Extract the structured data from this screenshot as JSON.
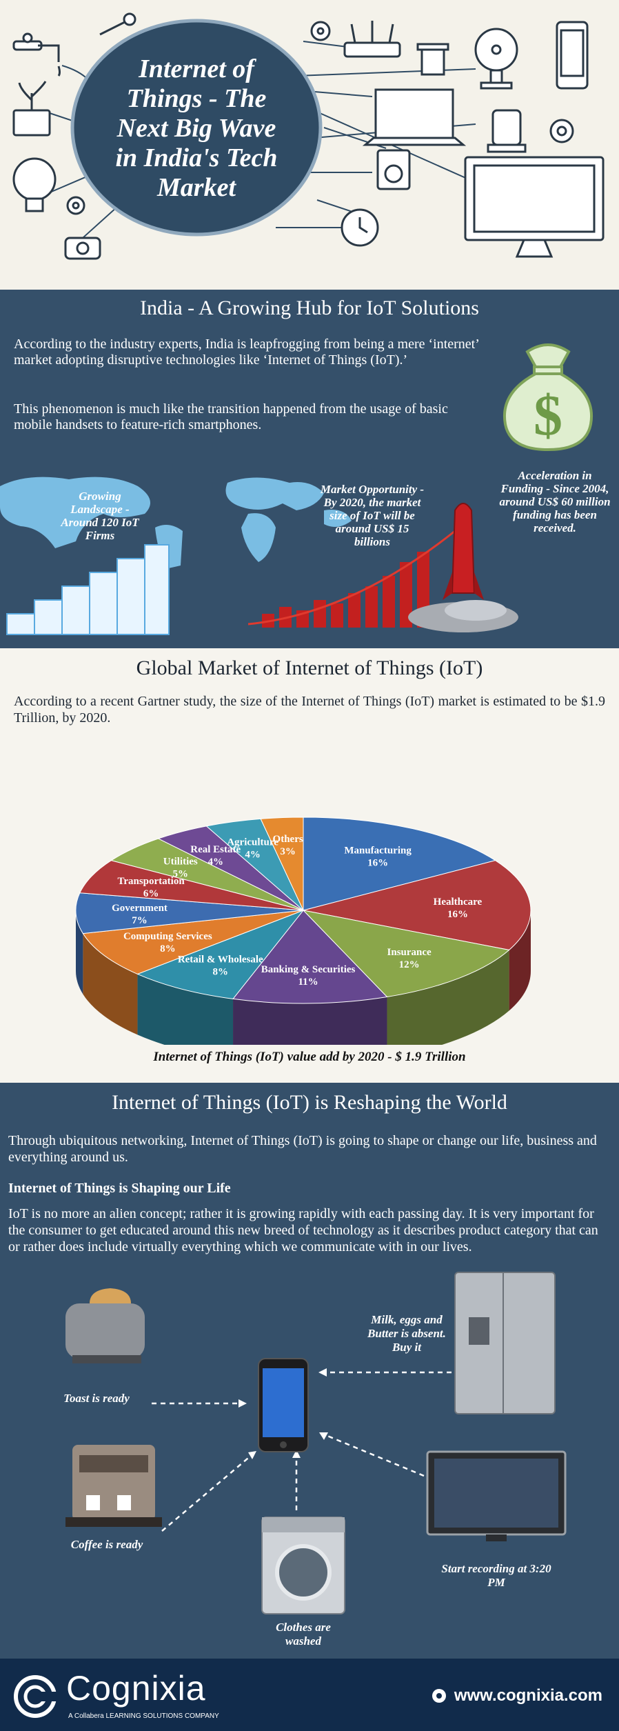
{
  "header": {
    "title_lines": [
      "Internet of",
      "Things - The",
      "Next Big Wave",
      "in India's Tech",
      "Market"
    ]
  },
  "section1": {
    "title": "India - A Growing Hub for IoT Solutions",
    "para1": "According to the industry experts, India is leapfrogging from being a mere ‘internet’ market adopting disruptive technologies like ‘Internet of Things (IoT).’",
    "para2": "This phenomenon is much like the transition happened from the usage of basic mobile handsets to feature-rich smartphones.",
    "label_growing": "Growing Landscape - Around 120 IoT Firms",
    "label_market": "Market Opportunity - By 2020, the market size of IoT will be around US$ 15 billions",
    "label_funding": "Acceleration in Funding - Since 2004, around US$ 60 million funding has been received.",
    "money_symbol": "$"
  },
  "section2": {
    "title": "Global Market of Internet of Things (IoT)",
    "para": "According to a recent Gartner study, the size of the Internet of Things (IoT) market is estimated to be $1.9 Trillion, by 2020.",
    "caption": "Internet of Things (IoT) value add by 2020 - $ 1.9 Trillion"
  },
  "chart_data": {
    "type": "pie",
    "title": "",
    "slices": [
      {
        "label": "Manufacturing",
        "value": 16,
        "color": "#3a6fb4"
      },
      {
        "label": "Healthcare",
        "value": 16,
        "color": "#b03a3c"
      },
      {
        "label": "Insurance",
        "value": 12,
        "color": "#8aa64a"
      },
      {
        "label": "Banking & Securities",
        "value": 11,
        "color": "#65478f"
      },
      {
        "label": "Retail & Wholesale",
        "value": 8,
        "color": "#2f8fa9"
      },
      {
        "label": "Computing Services",
        "value": 8,
        "color": "#e07d2d"
      },
      {
        "label": "Government",
        "value": 7,
        "color": "#3d6cb0"
      },
      {
        "label": "Transportation",
        "value": 6,
        "color": "#b1383a"
      },
      {
        "label": "Utilities",
        "value": 5,
        "color": "#8fad4f"
      },
      {
        "label": "Real Estate",
        "value": 4,
        "color": "#6e4a94"
      },
      {
        "label": "Agriculture",
        "value": 4,
        "color": "#3c9bb4"
      },
      {
        "label": "Others",
        "value": 3,
        "color": "#e58a2f"
      }
    ],
    "value_suffix": "%"
  },
  "section3": {
    "title": "Internet of Things (IoT) is Reshaping the World",
    "para1": "Through ubiquitous networking, Internet of Things (IoT) is going to shape or change our life, business and everything around us.",
    "subtitle": "Internet of Things is Shaping our Life",
    "para2": "IoT is no more an alien concept; rather it is growing rapidly with each passing day. It is very important for the consumer to get educated around this new breed of technology as it describes product category that can or rather does include virtually everything which we communicate with in our lives.",
    "devices": {
      "toaster": "Toast is ready",
      "fridge": "Milk, eggs and Butter is absent. Buy it",
      "coffee": "Coffee is ready",
      "washer": "Clothes are washed",
      "tv": "Start recording at 3:20 PM"
    }
  },
  "footer": {
    "brand": "Cognixia",
    "tagline": "A Collabera LEARNING SOLUTIONS COMPANY",
    "url": "www.cognixia.com"
  },
  "colors": {
    "navy": "#35506a",
    "footer": "#112b4b",
    "cream": "#f4f2ea"
  }
}
